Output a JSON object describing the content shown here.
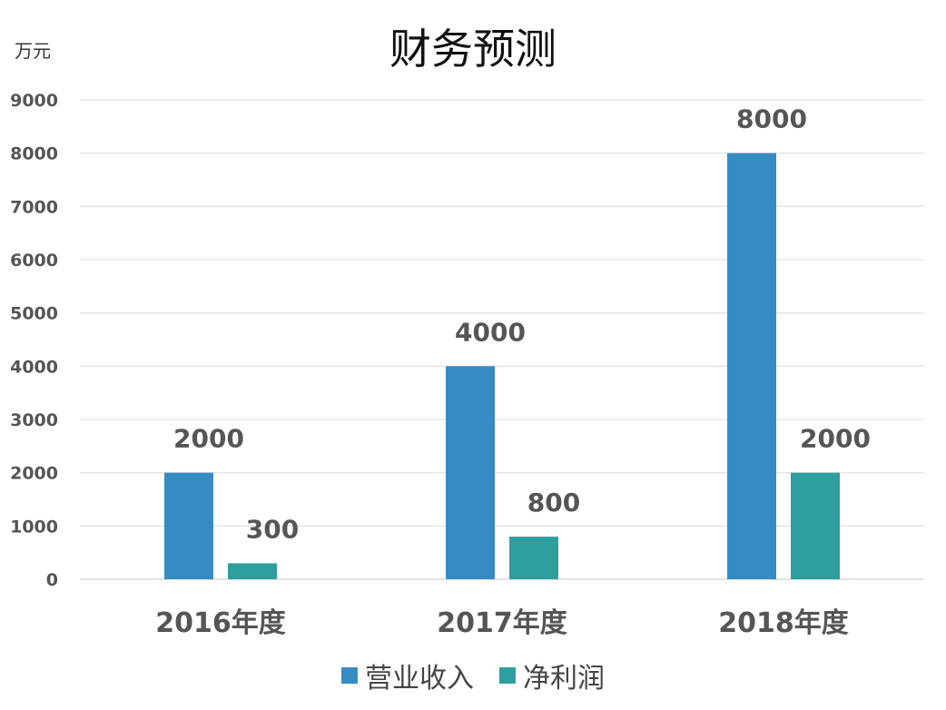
{
  "chart_data": {
    "type": "bar",
    "title": "财务预测",
    "ylabel": "万元",
    "xlabel": "",
    "categories": [
      "2016年度",
      "2017年度",
      "2018年度"
    ],
    "series": [
      {
        "name": "营业收入",
        "values": [
          2000,
          4000,
          8000
        ],
        "color": "#378BC3"
      },
      {
        "name": "净利润",
        "values": [
          300,
          800,
          2000
        ],
        "color": "#2E9E9E"
      }
    ],
    "ylim": [
      0,
      9000
    ],
    "yticks": [
      0,
      1000,
      2000,
      3000,
      4000,
      5000,
      6000,
      7000,
      8000,
      9000
    ],
    "grid": true,
    "legend": "bottom"
  }
}
